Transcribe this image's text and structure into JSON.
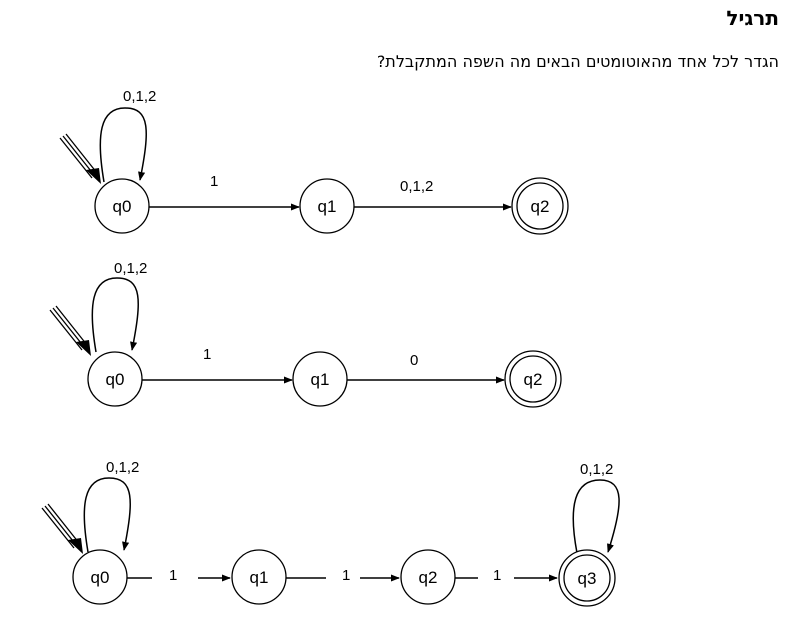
{
  "title": "תרגיל",
  "question": "הגדר לכל אחד מהאוטומטים הבאים מה השפה המתקבלת?",
  "automata": [
    {
      "states": [
        "q0",
        "q1",
        "q2"
      ],
      "self_loop_label": "0,1,2",
      "transitions": [
        {
          "from": "q0",
          "to": "q1",
          "label": "1"
        },
        {
          "from": "q1",
          "to": "q2",
          "label": "0,1,2"
        }
      ],
      "accepting": [
        "q2"
      ]
    },
    {
      "states": [
        "q0",
        "q1",
        "q2"
      ],
      "self_loop_label": "0,1,2",
      "transitions": [
        {
          "from": "q0",
          "to": "q1",
          "label": "1"
        },
        {
          "from": "q1",
          "to": "q2",
          "label": "0"
        }
      ],
      "accepting": [
        "q2"
      ]
    },
    {
      "states": [
        "q0",
        "q1",
        "q2",
        "q3"
      ],
      "self_loop_label": "0,1,2",
      "final_loop_label": "0,1,2",
      "transitions": [
        {
          "from": "q0",
          "to": "q1",
          "label": "1"
        },
        {
          "from": "q1",
          "to": "q2",
          "label": "1"
        },
        {
          "from": "q2",
          "to": "q3",
          "label": "1"
        }
      ],
      "accepting": [
        "q3"
      ]
    }
  ]
}
